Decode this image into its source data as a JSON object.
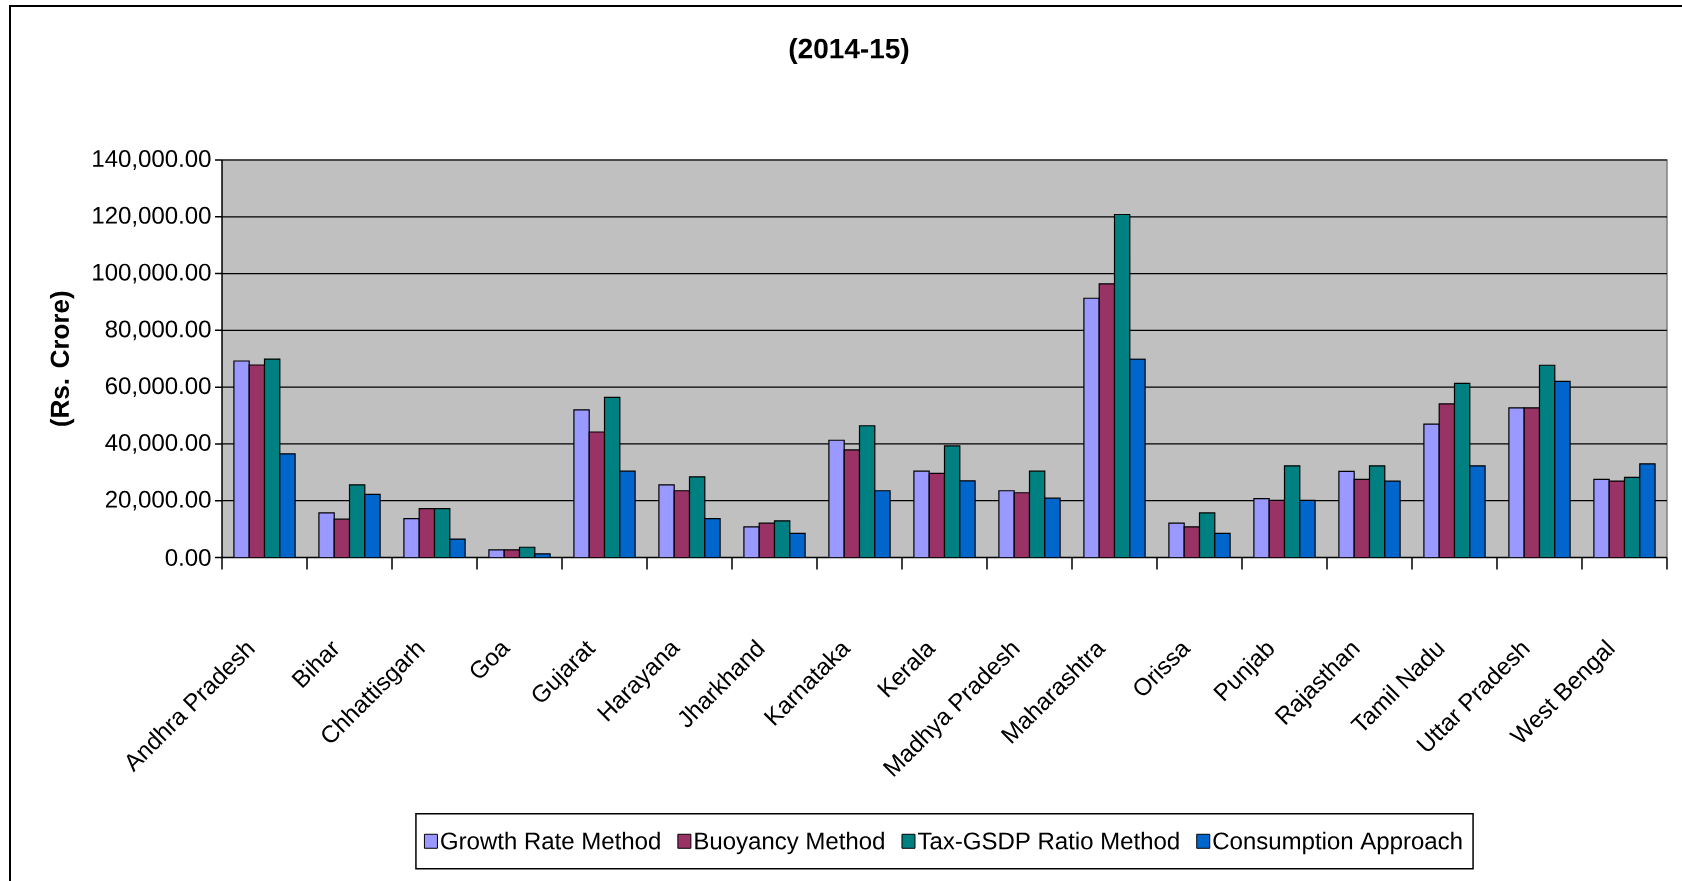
{
  "chart_data": {
    "type": "bar",
    "title": "(2014-15)",
    "ylabel": "(Rs. Crore)",
    "categories": [
      "Andhra Pradesh",
      "Bihar",
      "Chhattisgarh",
      "Goa",
      "Gujarat",
      "Harayana",
      "Jharkhand",
      "Karnataka",
      "Kerala",
      "Madhya Pradesh",
      "Maharashtra",
      "Orissa",
      "Punjab",
      "Rajasthan",
      "Tamil Nadu",
      "Uttar Pradesh",
      "West Bengal"
    ],
    "series": [
      {
        "name": "Growth Rate Method",
        "color": "#9999ff",
        "values": [
          69200,
          15700,
          13700,
          2700,
          52000,
          25600,
          10800,
          41300,
          30400,
          23500,
          91300,
          12100,
          20700,
          30300,
          47000,
          52700,
          27500
        ]
      },
      {
        "name": "Buoyancy Method",
        "color": "#993366",
        "values": [
          67800,
          13500,
          17200,
          2700,
          44200,
          23500,
          12100,
          37900,
          29600,
          22800,
          96400,
          10800,
          20100,
          27500,
          54100,
          52700,
          26900
        ]
      },
      {
        "name": "Tax-GSDP Ratio Method",
        "color": "#008080",
        "values": [
          69900,
          25600,
          17200,
          3600,
          56400,
          28400,
          12900,
          46400,
          39300,
          30400,
          120800,
          15700,
          32300,
          32300,
          61300,
          67700,
          28200
        ]
      },
      {
        "name": "Consumption Approach",
        "color": "#0066cc",
        "values": [
          36500,
          22200,
          6500,
          1300,
          30400,
          13700,
          8500,
          23500,
          27000,
          20900,
          69900,
          8500,
          20100,
          26900,
          32300,
          62000,
          33000
        ]
      }
    ],
    "ylim": [
      0,
      140000
    ],
    "yticks": [
      {
        "value": 0,
        "label": "0.00"
      },
      {
        "value": 20000,
        "label": "20,000.00"
      },
      {
        "value": 40000,
        "label": "40,000.00"
      },
      {
        "value": 60000,
        "label": "60,000.00"
      },
      {
        "value": 80000,
        "label": "80,000.00"
      },
      {
        "value": 100000,
        "label": "100,000.00"
      },
      {
        "value": 120000,
        "label": "120,000.00"
      },
      {
        "value": 140000,
        "label": "140,000.00"
      }
    ],
    "grid": "y",
    "legend": "bottom"
  }
}
